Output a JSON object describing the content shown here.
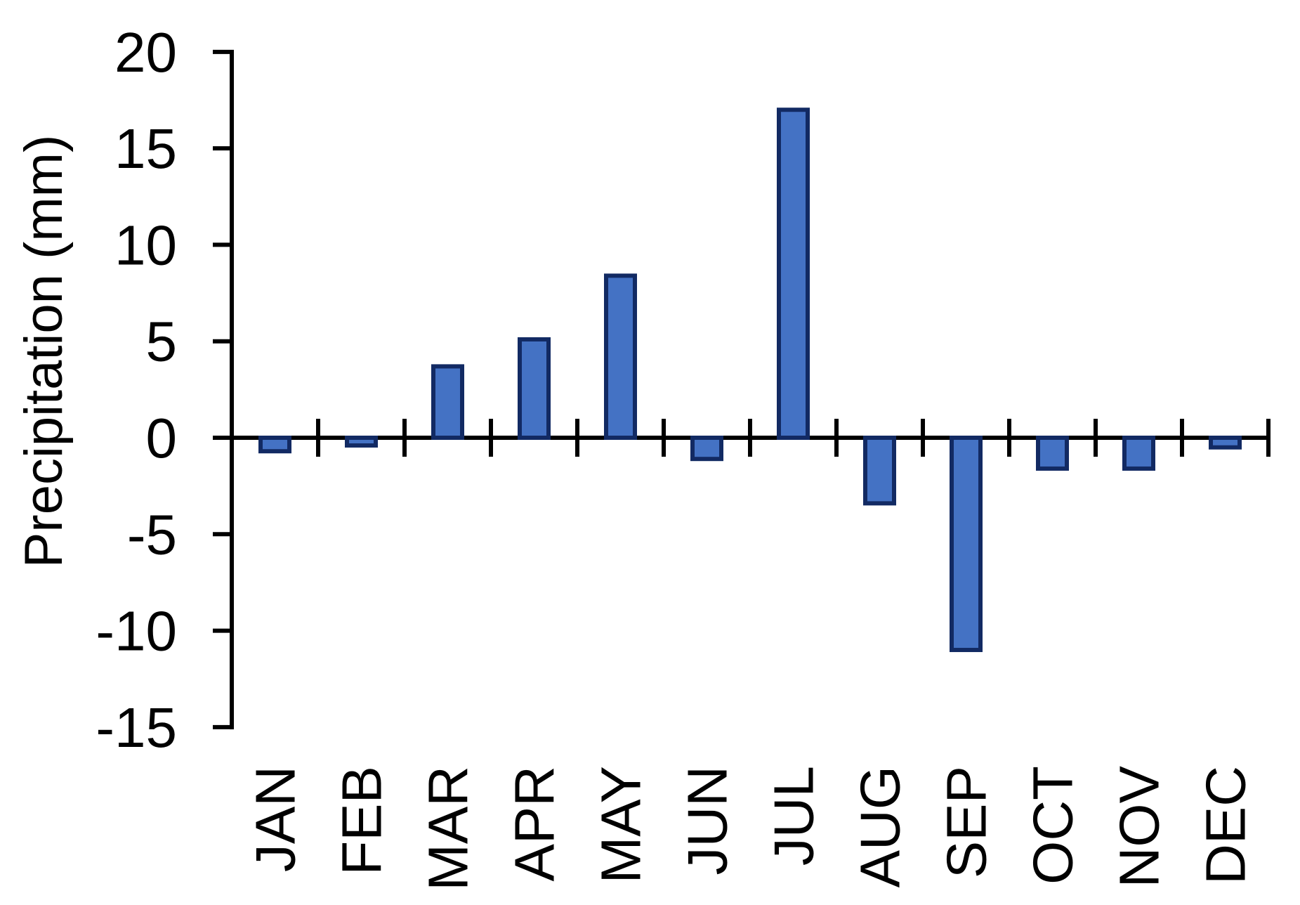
{
  "chart_data": {
    "type": "bar",
    "title": "",
    "xlabel": "",
    "ylabel": "Precipitation (mm)",
    "categories": [
      "JAN",
      "FEB",
      "MAR",
      "APR",
      "MAY",
      "JUN",
      "JUL",
      "AUG",
      "SEP",
      "OCT",
      "NOV",
      "DEC"
    ],
    "values": [
      -0.7,
      -0.4,
      3.7,
      5.1,
      8.4,
      -1.1,
      17,
      -3.4,
      -11,
      -1.6,
      -1.6,
      -0.5
    ],
    "ylim": [
      -15,
      20
    ],
    "yticks": [
      20,
      15,
      10,
      5,
      0,
      -5,
      -10,
      -15
    ],
    "grid": false,
    "legend_position": "none",
    "x_tick_style": "cross",
    "x_label_rotation_deg": 90,
    "colors": {
      "bar_fill": "#4472c4",
      "bar_border": "#122a63",
      "axis": "#000000",
      "text": "#000000",
      "background": "#ffffff"
    }
  }
}
